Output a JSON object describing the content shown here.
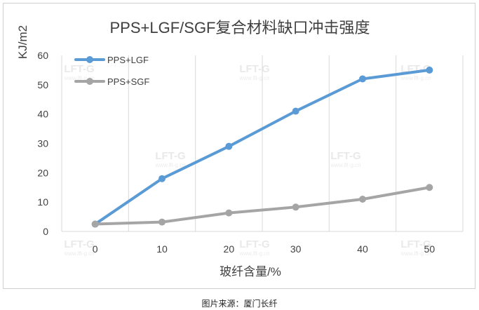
{
  "chart_data": {
    "type": "line",
    "title": "PPS+LGF/SGF复合材料缺口冲击强度",
    "xlabel": "玻纤含量/%",
    "ylabel": "KJ/m2",
    "x": [
      0,
      10,
      20,
      30,
      40,
      50
    ],
    "xlim": [
      0,
      50
    ],
    "ylim": [
      0,
      60
    ],
    "yticks": [
      0,
      10,
      20,
      30,
      40,
      50,
      60
    ],
    "grid": "vertical",
    "legend": "top-left",
    "series": [
      {
        "name": "PPS+LGF",
        "color": "#5b9bd5",
        "values": [
          2.5,
          18,
          29,
          41,
          52,
          55
        ]
      },
      {
        "name": "PPS+SGF",
        "color": "#a5a5a5",
        "values": [
          2.5,
          3.2,
          6.3,
          8.3,
          11,
          15
        ]
      }
    ]
  },
  "watermark": {
    "text": "LFT-G",
    "sub": "www.lft-g.cn"
  },
  "caption": "图片来源：厦门长纤"
}
